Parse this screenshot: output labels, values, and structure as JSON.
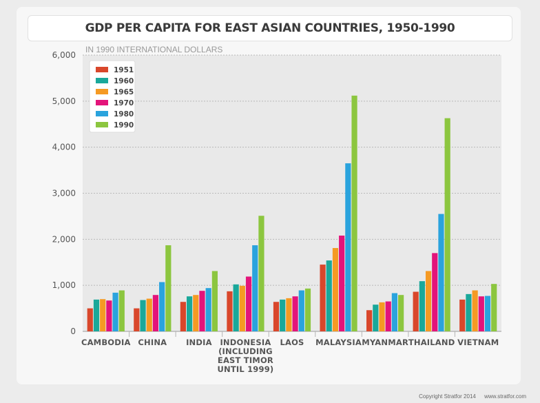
{
  "chart_data": {
    "type": "bar",
    "title": "GDP PER CAPITA FOR EAST ASIAN COUNTRIES, 1950-1990",
    "ylabel": "IN 1990 INTERNATIONAL DOLLARS",
    "ylim": [
      0,
      6000
    ],
    "yticks": [
      0,
      1000,
      2000,
      3000,
      4000,
      5000,
      6000
    ],
    "ytick_labels": [
      "0",
      "1,000",
      "2,000",
      "3,000",
      "4,000",
      "5,000",
      "6,000"
    ],
    "grid": true,
    "legend_position": "top-left",
    "categories": [
      [
        "CAMBODIA"
      ],
      [
        "CHINA"
      ],
      [
        "INDIA"
      ],
      [
        "INDONESIA",
        "(INCLUDING",
        "EAST TIMOR",
        "UNTIL 1999)"
      ],
      [
        "LAOS"
      ],
      [
        "MALAYSIA"
      ],
      [
        "MYANMAR"
      ],
      [
        "THAILAND"
      ],
      [
        "VIETNAM"
      ]
    ],
    "series": [
      {
        "name": "1951",
        "color": "#d9472b",
        "values": [
          500,
          500,
          640,
          870,
          640,
          1450,
          460,
          860,
          690
        ]
      },
      {
        "name": "1960",
        "color": "#1aa89a",
        "values": [
          690,
          680,
          760,
          1020,
          690,
          1540,
          580,
          1090,
          810
        ]
      },
      {
        "name": "1965",
        "color": "#f59a23",
        "values": [
          700,
          710,
          790,
          990,
          720,
          1810,
          630,
          1310,
          890
        ]
      },
      {
        "name": "1970",
        "color": "#e3147a",
        "values": [
          670,
          790,
          880,
          1190,
          760,
          2080,
          650,
          1700,
          760
        ]
      },
      {
        "name": "1980",
        "color": "#2aa3dd",
        "values": [
          840,
          1070,
          940,
          1870,
          890,
          3650,
          830,
          2550,
          770
        ]
      },
      {
        "name": "1990",
        "color": "#8cc63f",
        "values": [
          890,
          1870,
          1310,
          2510,
          930,
          5120,
          790,
          4630,
          1030
        ]
      }
    ]
  },
  "footer": {
    "copyright": "Copyright Stratfor 2014",
    "url": "www.stratfor.com"
  }
}
